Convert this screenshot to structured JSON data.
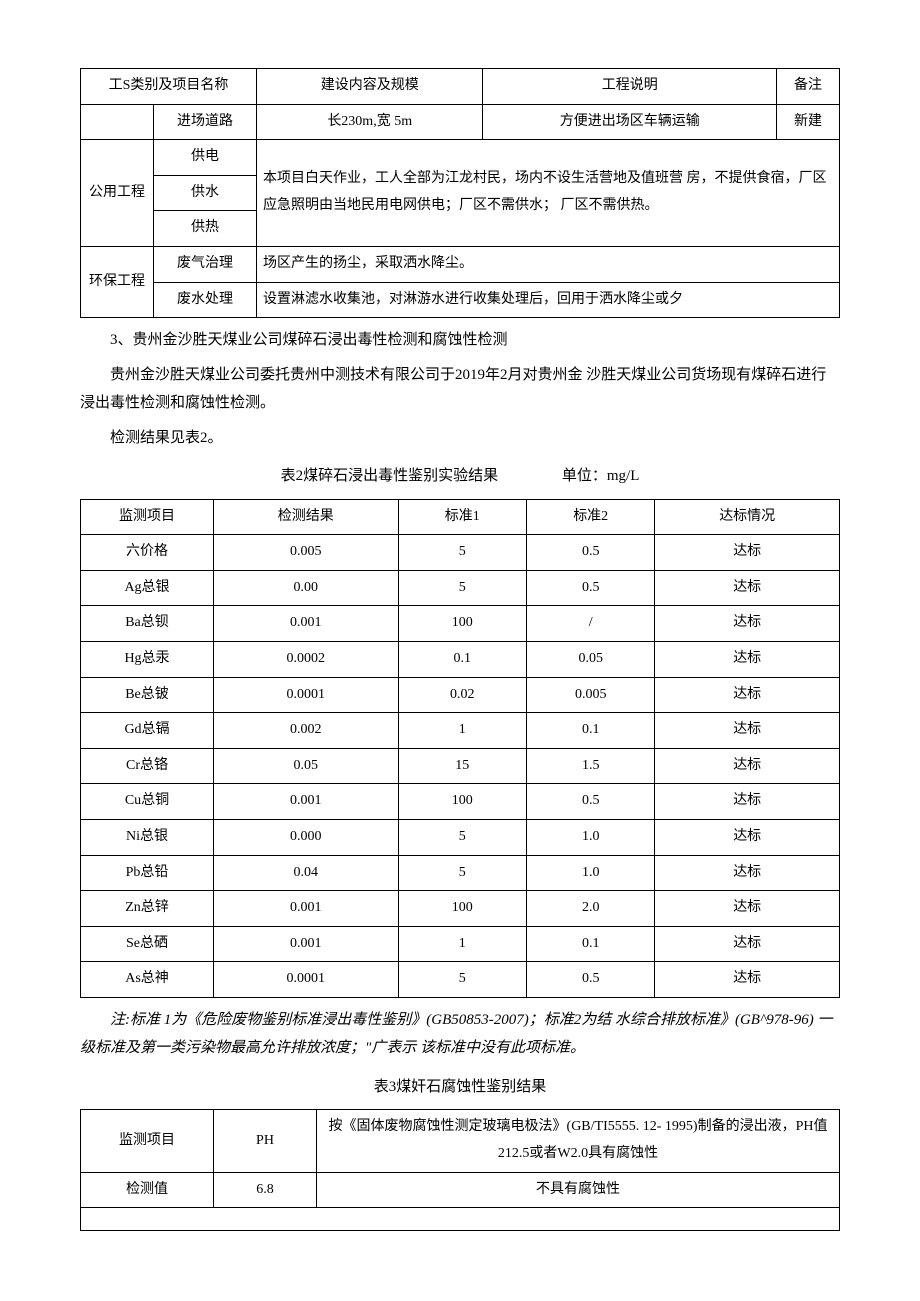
{
  "table1": {
    "headers": [
      "工S类别及项目名称",
      "建设内容及规模",
      "工程说明",
      "备注"
    ],
    "row_road": {
      "name": "进场道路",
      "content": "长230m,宽  5m",
      "desc": "方便进出场区车辆运输",
      "note": "新建"
    },
    "utility_group": "公用工程",
    "utility_rows": [
      "供电",
      "供水",
      "供热"
    ],
    "utility_desc": "本项目白天作业，工人全部为江龙村民，场内不设生活营地及值班营 房，不提供食宿，厂区应急照明由当地民用电网供电；厂区不需供水； 厂区不需供热。",
    "env_group": "环保工程",
    "env_row1": {
      "name": "废气治理",
      "desc": "场区产生的扬尘，采取洒水降尘。"
    },
    "env_row2": {
      "name": "废水处理",
      "desc": "设置淋滤水收集池，对淋游水进行收集处理后，回用于洒水降尘或夕"
    }
  },
  "para1": "3、贵州金沙胜天煤业公司煤碎石浸出毒性检测和腐蚀性检测",
  "para2": "贵州金沙胜天煤业公司委托贵州中测技术有限公司于2019年2月对贵州金   沙胜天煤业公司货场现有煤碎石进行浸出毒性检测和腐蚀性检测。",
  "para3": "检测结果见表2。",
  "caption2_main": "表2煤碎石浸出毒性鉴别实验结果",
  "caption2_unit": "单位：mg/L",
  "table2": {
    "headers": [
      "监测项目",
      "检测结果",
      "标准1",
      "标准2",
      "达标情况"
    ],
    "rows": [
      [
        "六价格",
        "0.005",
        "5",
        "0.5",
        "达标"
      ],
      [
        "Ag总银",
        "0.00",
        "5",
        "0.5",
        "达标"
      ],
      [
        "Ba总钡",
        "0.001",
        "100",
        "/",
        "达标"
      ],
      [
        "Hg总汞",
        "0.0002",
        "0.1",
        "0.05",
        "达标"
      ],
      [
        "Be总铍",
        "0.0001",
        "0.02",
        "0.005",
        "达标"
      ],
      [
        "Gd总镉",
        "0.002",
        "1",
        "0.1",
        "达标"
      ],
      [
        "Cr总铬",
        "0.05",
        "15",
        "1.5",
        "达标"
      ],
      [
        "Cu总铜",
        "0.001",
        "100",
        "0.5",
        "达标"
      ],
      [
        "Ni总银",
        "0.000",
        "5",
        "1.0",
        "达标"
      ],
      [
        "Pb总铅",
        "0.04",
        "5",
        "1.0",
        "达标"
      ],
      [
        "Zn总锌",
        "0.001",
        "100",
        "2.0",
        "达标"
      ],
      [
        "Se总硒",
        "0.001",
        "1",
        "0.1",
        "达标"
      ],
      [
        "As总神",
        "0.0001",
        "5",
        "0.5",
        "达标"
      ]
    ]
  },
  "note_text": "注:标准  1为《危险废物鉴别标准浸出毒性鉴别》(GB50853-2007)；标准2为结   水综合排放标准》(GB^978-96) 一级标准及第一类污染物最高允许排放浓度；\"广表示 该标准中没有此项标准。",
  "caption3": "表3煤奸石腐蚀性鉴别结果",
  "table3": {
    "r1c1": "监测项目",
    "r1c2": "PH",
    "r1c3": "按《固体废物腐蚀性测定玻璃电极法》(GB/TI5555. 12- 1995)制备的浸出液，PH值212.5或者W2.0具有腐蚀性",
    "r2c1": "检测值",
    "r2c2": "6.8",
    "r2c3": "不具有腐蚀性"
  }
}
